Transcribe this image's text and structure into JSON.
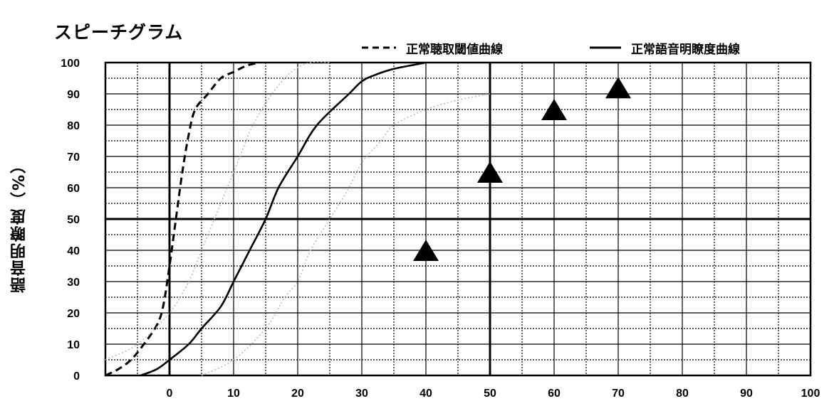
{
  "chart_data": {
    "type": "line",
    "title": "スピーチグラム",
    "xlabel": "",
    "ylabel": "語音明瞭度（%）",
    "xlim": [
      -10,
      100
    ],
    "ylim": [
      0,
      100
    ],
    "xticks": [
      0,
      10,
      20,
      30,
      40,
      50,
      60,
      70,
      80,
      90,
      100
    ],
    "yticks": [
      0,
      10,
      20,
      30,
      40,
      50,
      60,
      70,
      80,
      90,
      100
    ],
    "grid": true,
    "legend_position": "top-right",
    "series": [
      {
        "name": "正常聴取閾値曲線",
        "style": "dashed",
        "color": "#000000",
        "points": [
          [
            -10,
            0
          ],
          [
            -8,
            2
          ],
          [
            -6,
            5
          ],
          [
            -4,
            10
          ],
          [
            -2,
            16
          ],
          [
            -1,
            22
          ],
          [
            0,
            35
          ],
          [
            1,
            50
          ],
          [
            2,
            65
          ],
          [
            3,
            77
          ],
          [
            4,
            85
          ],
          [
            6,
            90
          ],
          [
            8,
            95
          ],
          [
            10,
            97
          ],
          [
            12,
            99
          ],
          [
            14,
            100
          ]
        ]
      },
      {
        "name": "正常語音明瞭度曲線",
        "style": "solid",
        "color": "#000000",
        "points": [
          [
            -4.5,
            0
          ],
          [
            -2,
            2
          ],
          [
            0,
            5
          ],
          [
            3,
            10
          ],
          [
            5,
            15
          ],
          [
            8,
            22
          ],
          [
            10,
            30
          ],
          [
            12.5,
            40
          ],
          [
            15,
            50
          ],
          [
            17,
            60
          ],
          [
            20,
            70
          ],
          [
            23,
            80
          ],
          [
            28,
            90
          ],
          [
            30,
            94
          ],
          [
            32,
            96
          ],
          [
            35,
            98
          ],
          [
            40,
            100
          ]
        ]
      },
      {
        "style": "dotted",
        "color": "#bbbbbb",
        "points": [
          [
            -10,
            5
          ],
          [
            -5,
            10
          ],
          [
            0,
            20
          ],
          [
            3,
            30
          ],
          [
            5,
            40
          ],
          [
            7,
            50
          ],
          [
            9,
            60
          ],
          [
            11,
            70
          ],
          [
            13,
            80
          ],
          [
            16,
            90
          ],
          [
            19,
            97
          ],
          [
            22,
            100
          ],
          [
            25,
            100
          ]
        ]
      },
      {
        "style": "dotted",
        "color": "#bbbbbb",
        "points": [
          [
            5,
            0
          ],
          [
            10,
            5
          ],
          [
            15,
            15
          ],
          [
            18,
            25
          ],
          [
            20,
            30
          ],
          [
            22,
            40
          ],
          [
            25,
            50
          ],
          [
            28,
            60
          ],
          [
            30,
            68
          ],
          [
            33,
            75
          ],
          [
            35,
            80
          ],
          [
            40,
            85
          ],
          [
            45,
            88
          ],
          [
            50,
            90
          ]
        ]
      },
      {
        "type": "scatter",
        "marker": "triangle",
        "color": "#000000",
        "points": [
          [
            40,
            40
          ],
          [
            50,
            65
          ],
          [
            60,
            85
          ],
          [
            70,
            92
          ]
        ]
      }
    ]
  }
}
